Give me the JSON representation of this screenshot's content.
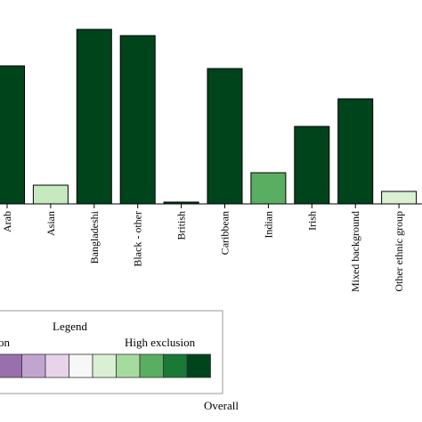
{
  "chart_data": {
    "type": "bar",
    "categories": [
      "Arab",
      "Asian",
      "Bangladeshi",
      "Black - other",
      "British",
      "Caribbean",
      "Indian",
      "Irish",
      "Mixed background",
      "Other ethnic group"
    ],
    "values": [
      155,
      21,
      196,
      189,
      2,
      152,
      35,
      87,
      118,
      14
    ],
    "bar_colors": [
      "#00441b",
      "#c7e9c0",
      "#00441b",
      "#00441b",
      "#00441b",
      "#00441b",
      "#5aae61",
      "#00441b",
      "#00441b",
      "#d9f0d3"
    ],
    "ylim": [
      0,
      200
    ],
    "grid": false,
    "legend": {
      "title": "Legend",
      "left_label_fragment": "on",
      "right_label": "High exclusion",
      "swatches": [
        "#9970ab",
        "#c2a5cf",
        "#e7d4e8",
        "#f7f7f7",
        "#d9f0d3",
        "#a6dba0",
        "#5aae61",
        "#1b7837",
        "#00441b"
      ],
      "placement": "bottom-left"
    },
    "footer_label": "Overall"
  }
}
